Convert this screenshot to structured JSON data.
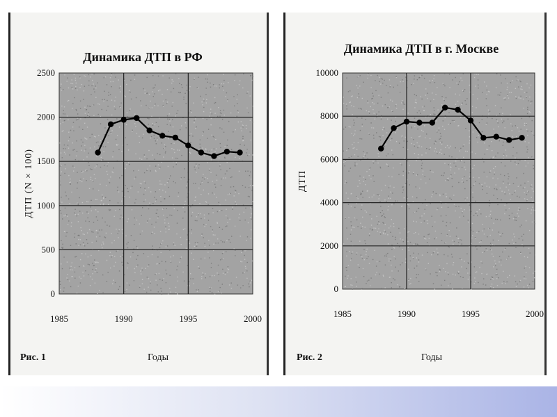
{
  "chart_data": [
    {
      "type": "line",
      "title": "Динамика ДТП в РФ",
      "figure_label": "Рис. 1",
      "xlabel": "Годы",
      "ylabel": "ДТП (N × 100)",
      "xlim": [
        1985,
        2000
      ],
      "ylim": [
        0,
        2500
      ],
      "x_ticks": [
        "1985",
        "1990",
        "1995",
        "2000"
      ],
      "y_ticks": [
        "0",
        "500",
        "1000",
        "1500",
        "2000",
        "2500"
      ],
      "grid": true,
      "series": [
        {
          "x": [
            1988,
            1989,
            1990,
            1991,
            1992,
            1993,
            1994,
            1995,
            1996,
            1997,
            1998,
            1999
          ],
          "y": [
            1600,
            1920,
            1970,
            1990,
            1850,
            1790,
            1770,
            1680,
            1600,
            1560,
            1610,
            1600
          ]
        }
      ]
    },
    {
      "type": "line",
      "title": "Динамика ДТП в г. Москве",
      "figure_label": "Рис. 2",
      "xlabel": "Годы",
      "ylabel": "ДТП",
      "xlim": [
        1985,
        2000
      ],
      "ylim": [
        0,
        10000
      ],
      "x_ticks": [
        "1985",
        "1990",
        "1995",
        "2000"
      ],
      "y_ticks": [
        "0",
        "2000",
        "4000",
        "6000",
        "8000",
        "10000"
      ],
      "grid": true,
      "series": [
        {
          "x": [
            1988,
            1989,
            1990,
            1991,
            1992,
            1993,
            1994,
            1995,
            1996,
            1997,
            1998,
            1999
          ],
          "y": [
            6500,
            7450,
            7750,
            7700,
            7700,
            8400,
            8300,
            7800,
            7000,
            7050,
            6900,
            7000
          ]
        }
      ]
    }
  ]
}
